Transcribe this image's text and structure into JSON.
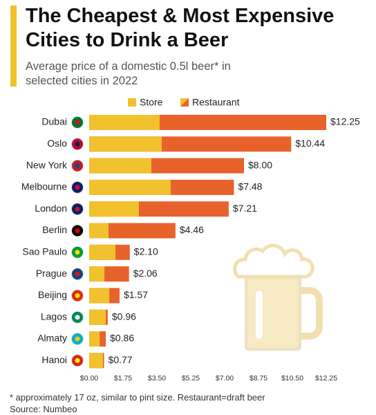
{
  "chart_data": {
    "type": "bar",
    "title": "The Cheapest & Most Expensive Cities to Drink a Beer",
    "subtitle": "Average price of a domestic 0.5l beer* in selected cities in 2022",
    "footnote": "* approximately 17 oz, similar to pint size. Restaurant=draft beer",
    "source": "Source: Numbeo",
    "categories": [
      "Dubai",
      "Oslo",
      "New York",
      "Melbourne",
      "London",
      "Berlin",
      "Sao Paulo",
      "Prague",
      "Beijing",
      "Lagos",
      "Almaty",
      "Hanoi"
    ],
    "series": [
      {
        "name": "Store",
        "color": "#f2c12e",
        "values": [
          3.64,
          3.75,
          3.21,
          4.21,
          2.57,
          1.0,
          1.36,
          0.79,
          1.04,
          0.86,
          0.54,
          0.71
        ]
      },
      {
        "name": "Restaurant",
        "color": "#e8622c",
        "values": [
          12.25,
          10.44,
          8.0,
          7.48,
          7.21,
          4.46,
          2.1,
          2.06,
          1.57,
          0.96,
          0.86,
          0.77
        ],
        "value_labels": [
          "$12.25",
          "$10.44",
          "$8.00",
          "$7.48",
          "$7.21",
          "$4.46",
          "$2.10",
          "$2.06",
          "$1.57",
          "$0.96",
          "$0.86",
          "$0.77"
        ]
      }
    ],
    "xlim": [
      0,
      12.25
    ],
    "xticks": [
      {
        "value": 0,
        "label": "$0.00"
      },
      {
        "value": 1.75,
        "label": "$1.75"
      },
      {
        "value": 3.5,
        "label": "$3.50"
      },
      {
        "value": 5.25,
        "label": "$5.25"
      },
      {
        "value": 7,
        "label": "$7.00"
      },
      {
        "value": 8.75,
        "label": "$8.75"
      },
      {
        "value": 10.5,
        "label": "$10.50"
      },
      {
        "value": 12.25,
        "label": "$12.25"
      }
    ]
  }
}
